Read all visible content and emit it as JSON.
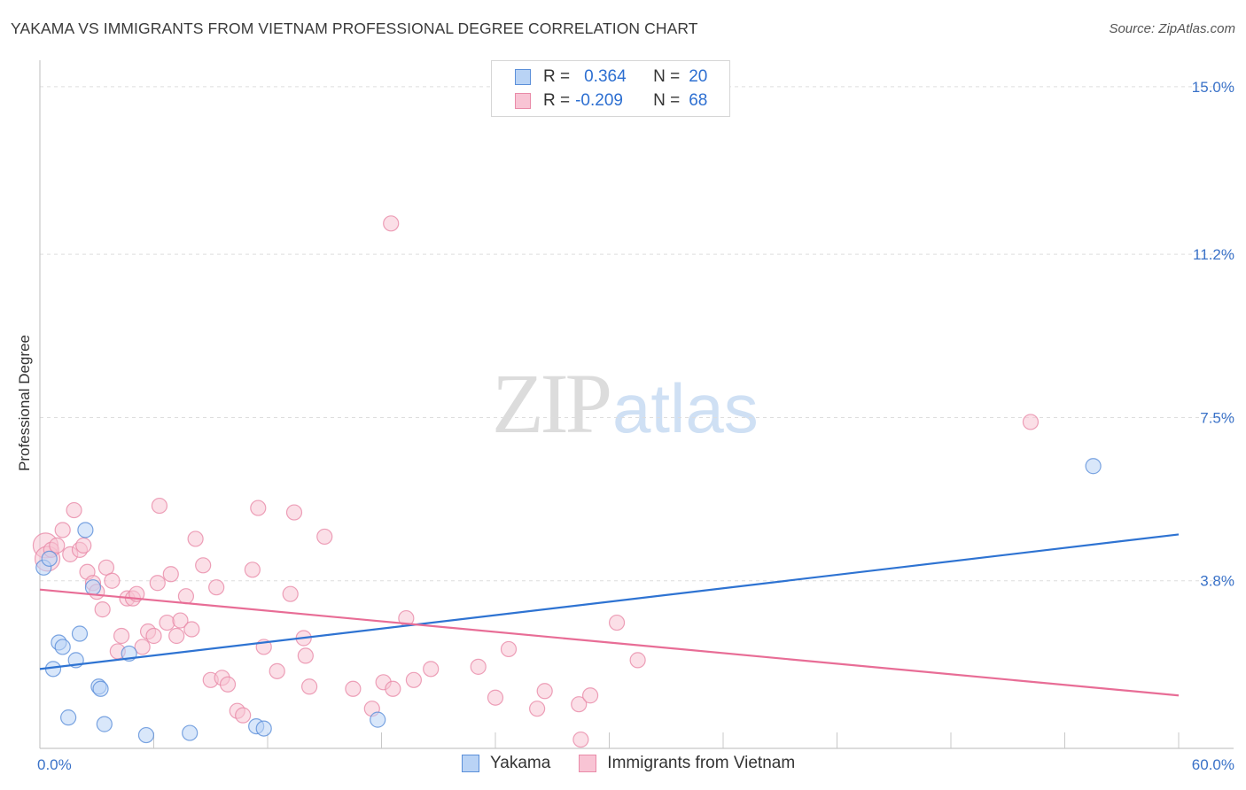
{
  "title": "YAKAMA VS IMMIGRANTS FROM VIETNAM PROFESSIONAL DEGREE CORRELATION CHART",
  "source": "Source: ZipAtlas.com",
  "watermark": {
    "zip": "ZIP",
    "atlas": "atlas"
  },
  "colors": {
    "yakama_fill": "#b9d3f5",
    "yakama_stroke": "#5b8fd9",
    "yakama_line": "#2e73d2",
    "vietnam_fill": "#f8c4d4",
    "vietnam_stroke": "#e98aa8",
    "vietnam_line": "#e86d96",
    "tick_text": "#3a72c8",
    "grid": "#dddddd"
  },
  "legend": {
    "rows": [
      {
        "r_label": "R =",
        "r_value": "0.364",
        "n_label": "N =",
        "n_value": "20"
      },
      {
        "r_label": "R =",
        "r_value": "-0.209",
        "n_label": "N =",
        "n_value": "68"
      }
    ]
  },
  "chart_data": {
    "type": "scatter",
    "title": "YAKAMA VS IMMIGRANTS FROM VIETNAM PROFESSIONAL DEGREE CORRELATION CHART",
    "xlabel": "",
    "ylabel": "Professional Degree",
    "xlim": [
      0,
      60
    ],
    "ylim": [
      0,
      15.4
    ],
    "x_tick_labels": [
      "0.0%",
      "60.0%"
    ],
    "y_ticks": [
      3.8,
      7.5,
      11.2,
      15.0
    ],
    "y_tick_labels": [
      "3.8%",
      "7.5%",
      "11.2%",
      "15.0%"
    ],
    "grid": "horizontal dashed",
    "legend_position": "bottom-center",
    "series": [
      {
        "name": "Yakama",
        "trend": {
          "x": [
            0,
            60
          ],
          "y": [
            1.8,
            4.85
          ]
        },
        "points": [
          {
            "x": 0.2,
            "y": 4.1
          },
          {
            "x": 0.5,
            "y": 4.3
          },
          {
            "x": 0.7,
            "y": 1.8
          },
          {
            "x": 1.0,
            "y": 2.4
          },
          {
            "x": 1.2,
            "y": 2.3
          },
          {
            "x": 1.5,
            "y": 0.7
          },
          {
            "x": 1.9,
            "y": 2.0
          },
          {
            "x": 2.1,
            "y": 2.6
          },
          {
            "x": 2.4,
            "y": 4.95
          },
          {
            "x": 2.8,
            "y": 3.65
          },
          {
            "x": 3.1,
            "y": 1.4
          },
          {
            "x": 3.2,
            "y": 1.35
          },
          {
            "x": 3.4,
            "y": 0.55
          },
          {
            "x": 4.7,
            "y": 2.15
          },
          {
            "x": 5.6,
            "y": 0.3
          },
          {
            "x": 7.9,
            "y": 0.35
          },
          {
            "x": 11.4,
            "y": 0.5
          },
          {
            "x": 11.8,
            "y": 0.45
          },
          {
            "x": 17.8,
            "y": 0.65
          },
          {
            "x": 55.5,
            "y": 6.4
          }
        ]
      },
      {
        "name": "Immigrants from Vietnam",
        "trend": {
          "x": [
            0,
            60
          ],
          "y": [
            3.6,
            1.2
          ]
        },
        "points": [
          {
            "x": 0.3,
            "y": 4.6,
            "r": 14
          },
          {
            "x": 0.4,
            "y": 4.3,
            "r": 14
          },
          {
            "x": 0.6,
            "y": 4.5
          },
          {
            "x": 0.9,
            "y": 4.6
          },
          {
            "x": 1.2,
            "y": 4.95
          },
          {
            "x": 1.6,
            "y": 4.4
          },
          {
            "x": 1.8,
            "y": 5.4
          },
          {
            "x": 2.1,
            "y": 4.5
          },
          {
            "x": 2.3,
            "y": 4.6
          },
          {
            "x": 2.5,
            "y": 4.0
          },
          {
            "x": 2.8,
            "y": 3.75
          },
          {
            "x": 3.0,
            "y": 3.55
          },
          {
            "x": 3.3,
            "y": 3.15
          },
          {
            "x": 3.5,
            "y": 4.1
          },
          {
            "x": 3.8,
            "y": 3.8
          },
          {
            "x": 4.1,
            "y": 2.2
          },
          {
            "x": 4.3,
            "y": 2.55
          },
          {
            "x": 4.6,
            "y": 3.4
          },
          {
            "x": 4.9,
            "y": 3.4
          },
          {
            "x": 5.1,
            "y": 3.5
          },
          {
            "x": 5.4,
            "y": 2.3
          },
          {
            "x": 5.7,
            "y": 2.65
          },
          {
            "x": 6.0,
            "y": 2.55
          },
          {
            "x": 6.2,
            "y": 3.75
          },
          {
            "x": 6.3,
            "y": 5.5
          },
          {
            "x": 6.7,
            "y": 2.85
          },
          {
            "x": 6.9,
            "y": 3.95
          },
          {
            "x": 7.2,
            "y": 2.55
          },
          {
            "x": 7.4,
            "y": 2.9
          },
          {
            "x": 7.7,
            "y": 3.45
          },
          {
            "x": 8.0,
            "y": 2.7
          },
          {
            "x": 8.2,
            "y": 4.75
          },
          {
            "x": 8.6,
            "y": 4.15
          },
          {
            "x": 9.0,
            "y": 1.55
          },
          {
            "x": 9.3,
            "y": 3.65
          },
          {
            "x": 9.6,
            "y": 1.6
          },
          {
            "x": 9.9,
            "y": 1.45
          },
          {
            "x": 10.4,
            "y": 0.85
          },
          {
            "x": 10.7,
            "y": 0.75
          },
          {
            "x": 11.2,
            "y": 4.05
          },
          {
            "x": 11.5,
            "y": 5.45
          },
          {
            "x": 11.8,
            "y": 2.3
          },
          {
            "x": 12.5,
            "y": 1.75
          },
          {
            "x": 13.2,
            "y": 3.5
          },
          {
            "x": 13.4,
            "y": 5.35
          },
          {
            "x": 13.9,
            "y": 2.5
          },
          {
            "x": 14.0,
            "y": 2.1
          },
          {
            "x": 14.2,
            "y": 1.4
          },
          {
            "x": 15.0,
            "y": 4.8
          },
          {
            "x": 16.5,
            "y": 1.35
          },
          {
            "x": 17.5,
            "y": 0.9
          },
          {
            "x": 18.1,
            "y": 1.5
          },
          {
            "x": 18.5,
            "y": 11.9
          },
          {
            "x": 18.6,
            "y": 1.35
          },
          {
            "x": 19.3,
            "y": 2.95
          },
          {
            "x": 19.7,
            "y": 1.55
          },
          {
            "x": 20.6,
            "y": 1.8
          },
          {
            "x": 23.1,
            "y": 1.85
          },
          {
            "x": 24.0,
            "y": 1.15
          },
          {
            "x": 24.7,
            "y": 2.25
          },
          {
            "x": 26.2,
            "y": 0.9
          },
          {
            "x": 26.6,
            "y": 1.3
          },
          {
            "x": 28.4,
            "y": 1.0
          },
          {
            "x": 28.5,
            "y": 0.2
          },
          {
            "x": 29.0,
            "y": 1.2
          },
          {
            "x": 30.4,
            "y": 2.85
          },
          {
            "x": 31.5,
            "y": 2.0
          },
          {
            "x": 52.2,
            "y": 7.4
          }
        ]
      }
    ]
  }
}
